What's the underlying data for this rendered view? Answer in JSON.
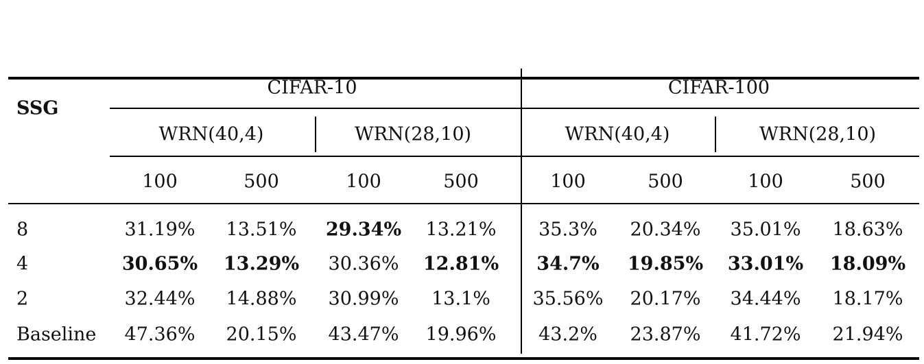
{
  "table": {
    "row_header": "SSG",
    "datasets": [
      "CIFAR-10",
      "CIFAR-100"
    ],
    "models": [
      "WRN(40,4)",
      "WRN(28,10)",
      "WRN(40,4)",
      "WRN(28,10)"
    ],
    "labels_per_class": [
      "100",
      "500",
      "100",
      "500",
      "100",
      "500",
      "100",
      "500"
    ],
    "rows": [
      {
        "label": "8",
        "values": [
          "31.19%",
          "13.51%",
          "29.34%",
          "13.21%",
          "35.3%",
          "20.34%",
          "35.01%",
          "18.63%"
        ],
        "bold": [
          false,
          false,
          true,
          false,
          false,
          false,
          false,
          false
        ]
      },
      {
        "label": "4",
        "values": [
          "30.65%",
          "13.29%",
          "30.36%",
          "12.81%",
          "34.7%",
          "19.85%",
          "33.01%",
          "18.09%"
        ],
        "bold": [
          true,
          true,
          false,
          true,
          true,
          true,
          true,
          true
        ]
      },
      {
        "label": "2",
        "values": [
          "32.44%",
          "14.88%",
          "30.99%",
          "13.1%",
          "35.56%",
          "20.17%",
          "34.44%",
          "18.17%"
        ],
        "bold": [
          false,
          false,
          false,
          false,
          false,
          false,
          false,
          false
        ]
      },
      {
        "label": "Baseline",
        "values": [
          "47.36%",
          "20.15%",
          "43.47%",
          "19.96%",
          "43.2%",
          "23.87%",
          "41.72%",
          "21.94%"
        ],
        "bold": [
          false,
          false,
          false,
          false,
          false,
          false,
          false,
          false
        ]
      }
    ]
  }
}
